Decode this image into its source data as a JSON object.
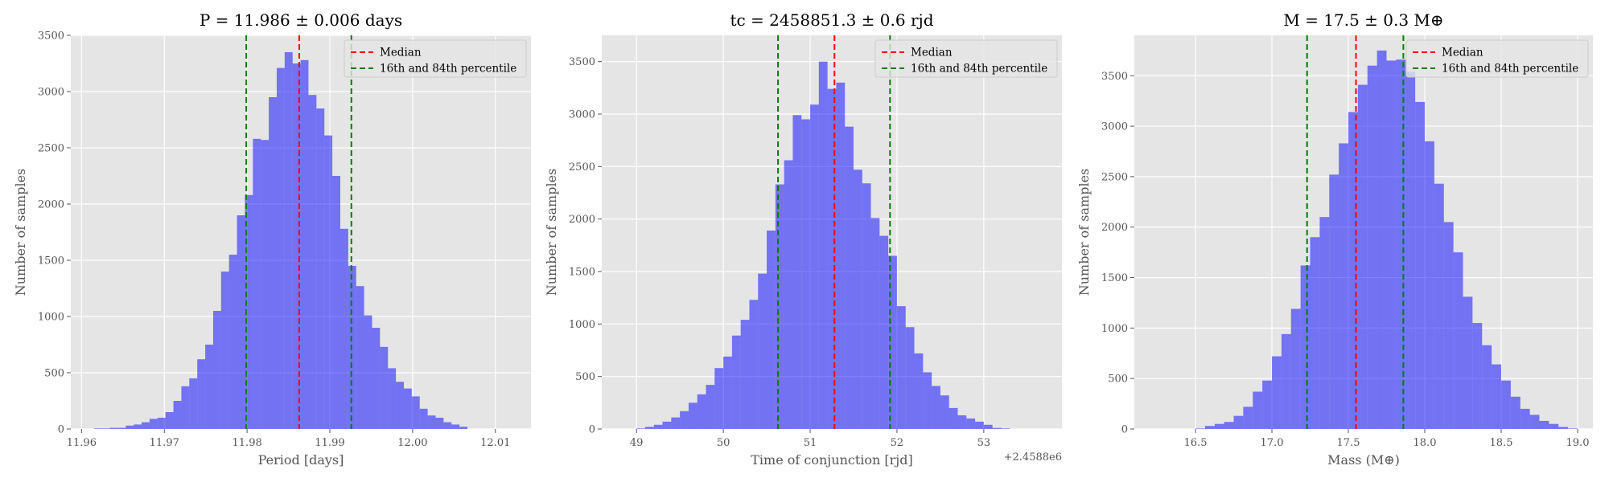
{
  "chart_data": [
    {
      "type": "bar",
      "title": "P = 11.986 ± 0.006 days",
      "xlabel": "Period [days]",
      "ylabel": "Number of samples",
      "xlim": [
        11.9587,
        12.0143
      ],
      "ylim": [
        0,
        3500
      ],
      "xticks": [
        11.96,
        11.97,
        11.98,
        11.99,
        12.0,
        12.01
      ],
      "xtick_labels": [
        "11.96",
        "11.97",
        "11.98",
        "11.99",
        "12.00",
        "12.01"
      ],
      "yticks": [
        0,
        500,
        1000,
        1500,
        2000,
        2500,
        3000,
        3500
      ],
      "offset_text": "",
      "grid": true,
      "legend_position": "top-right",
      "bin_start": 11.9615,
      "bin_width": 0.00096,
      "values": [
        5,
        5,
        10,
        10,
        30,
        40,
        60,
        90,
        100,
        150,
        250,
        380,
        450,
        620,
        750,
        1050,
        1400,
        1550,
        1900,
        2080,
        2580,
        2570,
        2950,
        3210,
        3350,
        3250,
        3280,
        2970,
        2850,
        2610,
        2250,
        1780,
        1450,
        1270,
        1010,
        900,
        730,
        540,
        420,
        360,
        290,
        180,
        120,
        100,
        60,
        40,
        20
      ],
      "median": 11.9863,
      "p16": 11.9799,
      "p84": 11.9926,
      "bar_color": "#0000ff",
      "median_color": "#ff0000",
      "percentile_color": "#008000",
      "legend": [
        "Median",
        "16th and 84th percentile"
      ]
    },
    {
      "type": "bar",
      "title": "tc = 2458851.3 ± 0.6 rjd",
      "xlabel": "Time of conjunction [rjd]",
      "ylabel": "Number of samples",
      "xlim": [
        48.6,
        53.9
      ],
      "ylim": [
        0,
        3750
      ],
      "xticks": [
        49,
        50,
        51,
        52,
        53
      ],
      "xtick_labels": [
        "49",
        "50",
        "51",
        "52",
        "53"
      ],
      "yticks": [
        0,
        500,
        1000,
        1500,
        2000,
        2500,
        3000,
        3500
      ],
      "offset_text": "+2.4588e6",
      "grid": true,
      "legend_position": "top-right",
      "bin_start": 49.0,
      "bin_width": 0.1,
      "values": [
        5,
        20,
        40,
        70,
        110,
        170,
        250,
        330,
        420,
        580,
        690,
        890,
        1040,
        1230,
        1480,
        1890,
        2330,
        2560,
        2990,
        2950,
        3090,
        3500,
        3240,
        3300,
        2880,
        2470,
        2340,
        2010,
        1840,
        1650,
        1170,
        970,
        720,
        540,
        410,
        320,
        200,
        130,
        100,
        70,
        40,
        10,
        5
      ],
      "median": 51.28,
      "p16": 50.63,
      "p84": 51.92,
      "bar_color": "#0000ff",
      "median_color": "#ff0000",
      "percentile_color": "#008000",
      "legend": [
        "Median",
        "16th and 84th percentile"
      ]
    },
    {
      "type": "bar",
      "title": "M = 17.5 ± 0.3 M⊕",
      "xlabel": "Mass (M⊕)",
      "ylabel": "Number of samples",
      "xlim": [
        16.1,
        19.1
      ],
      "ylim": [
        0,
        3900
      ],
      "xticks": [
        16.5,
        17.0,
        17.5,
        18.0,
        18.5,
        19.0
      ],
      "xtick_labels": [
        "16.5",
        "17.0",
        "17.5",
        "18.0",
        "18.5",
        "19.0"
      ],
      "yticks": [
        0,
        500,
        1000,
        1500,
        2000,
        2500,
        3000,
        3500
      ],
      "offset_text": "",
      "grid": true,
      "legend_position": "top-right",
      "bin_start": 16.5,
      "bin_width": 0.0625,
      "values": [
        5,
        30,
        50,
        70,
        130,
        220,
        370,
        480,
        720,
        940,
        1190,
        1620,
        1900,
        2100,
        2520,
        2830,
        3140,
        3410,
        3600,
        3750,
        3650,
        3660,
        3540,
        3240,
        2850,
        2430,
        2050,
        1750,
        1310,
        1050,
        830,
        640,
        480,
        320,
        200,
        140,
        80,
        50,
        20,
        5
      ],
      "median": 17.55,
      "p16": 17.23,
      "p84": 17.86,
      "bar_color": "#0000ff",
      "median_color": "#ff0000",
      "percentile_color": "#008000",
      "legend": [
        "Median",
        "16th and 84th percentile"
      ]
    }
  ]
}
